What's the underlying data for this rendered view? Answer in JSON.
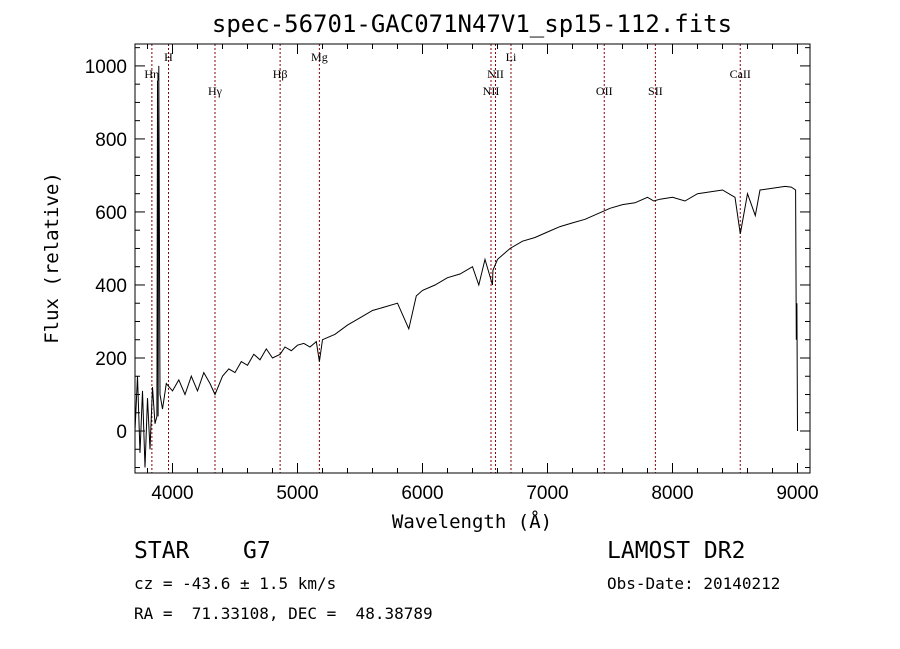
{
  "chart_data": {
    "type": "line",
    "title": "spec-56701-GAC071N47V1_sp15-112.fits",
    "xlabel": "Wavelength (Å)",
    "ylabel": "Flux (relative)",
    "xlim": [
      3700,
      9100
    ],
    "ylim": [
      -115,
      1060
    ],
    "xticks": [
      4000,
      5000,
      6000,
      7000,
      8000,
      9000
    ],
    "yticks": [
      0,
      200,
      400,
      600,
      800,
      1000
    ],
    "colors": {
      "spectrum": "#000000",
      "lines": "#8b0000"
    },
    "series": [
      {
        "x": [
          3700,
          3720,
          3740,
          3760,
          3780,
          3800,
          3820,
          3840,
          3860,
          3875,
          3880,
          3885,
          3890,
          3900,
          3920,
          3950,
          4000,
          4050,
          4100,
          4150,
          4200,
          4250,
          4300,
          4340,
          4400,
          4450,
          4500,
          4550,
          4600,
          4650,
          4700,
          4750,
          4800,
          4861,
          4900,
          4950,
          5000,
          5050,
          5100,
          5150,
          5175,
          5200,
          5300,
          5400,
          5500,
          5600,
          5700,
          5800,
          5890,
          5950,
          6000,
          6100,
          6200,
          6300,
          6400,
          6450,
          6500,
          6560,
          6563,
          6600,
          6700,
          6800,
          6900,
          7000,
          7100,
          7200,
          7300,
          7400,
          7500,
          7600,
          7700,
          7800,
          7850,
          7900,
          8000,
          8100,
          8200,
          8300,
          8400,
          8500,
          8542,
          8600,
          8662,
          8700,
          8800,
          8900,
          8950,
          8985,
          8990,
          8995,
          9000
        ],
        "y": [
          0,
          150,
          -60,
          110,
          -100,
          90,
          -50,
          120,
          20,
          40,
          960,
          40,
          1000,
          100,
          60,
          130,
          110,
          140,
          100,
          150,
          110,
          160,
          130,
          100,
          150,
          170,
          160,
          190,
          180,
          210,
          195,
          225,
          200,
          210,
          230,
          220,
          235,
          240,
          230,
          245,
          190,
          250,
          265,
          290,
          310,
          330,
          340,
          350,
          280,
          370,
          385,
          400,
          420,
          430,
          450,
          400,
          470,
          400,
          440,
          470,
          500,
          520,
          530,
          545,
          560,
          570,
          580,
          595,
          610,
          620,
          625,
          640,
          630,
          635,
          640,
          630,
          650,
          655,
          660,
          640,
          540,
          650,
          590,
          660,
          665,
          670,
          668,
          660,
          250,
          350,
          0
        ]
      }
    ],
    "spectral_lines": [
      {
        "label": "Hη",
        "x": 3835,
        "row": "upper"
      },
      {
        "label": "H",
        "x": 3968,
        "row": "top"
      },
      {
        "label": "Hγ",
        "x": 4340,
        "row": "lower"
      },
      {
        "label": "Hβ",
        "x": 4861,
        "row": "upper"
      },
      {
        "label": "Mg",
        "x": 5175,
        "row": "top"
      },
      {
        "label": "NII",
        "x": 6548,
        "row": "lower"
      },
      {
        "label": "NII",
        "x": 6584,
        "row": "upper"
      },
      {
        "label": "Li",
        "x": 6708,
        "row": "top"
      },
      {
        "label": "OII",
        "x": 7454,
        "row": "lower"
      },
      {
        "label": "SII",
        "x": 7863,
        "row": "lower"
      },
      {
        "label": "CaII",
        "x": 8542,
        "row": "upper"
      }
    ]
  },
  "info": {
    "class": "STAR",
    "subclass": "G7",
    "survey": "LAMOST DR2",
    "cz": "cz = -43.6 ± 1.5 km/s",
    "obs_date": "Obs-Date: 20140212",
    "coords": "RA =  71.33108, DEC =  48.38789"
  }
}
